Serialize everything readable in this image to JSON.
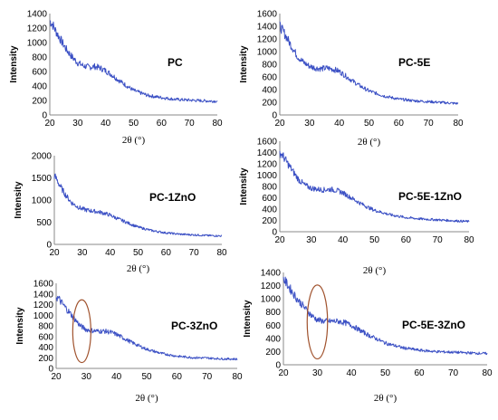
{
  "chart_data": [
    {
      "type": "line",
      "title": "PC",
      "xlabel": "2θ (°)",
      "ylabel": "Intensity",
      "xlim": [
        20,
        80
      ],
      "ylim": [
        0,
        1400
      ],
      "x_ticks": [
        20,
        30,
        40,
        50,
        60,
        70,
        80
      ],
      "y_ticks": [
        0,
        200,
        400,
        600,
        800,
        1000,
        1200,
        1400
      ],
      "series": [
        {
          "x": [
            20,
            21,
            22,
            24,
            26,
            28,
            30,
            32,
            34,
            36,
            38,
            40,
            42,
            45,
            48,
            50,
            55,
            60,
            65,
            70,
            75,
            80
          ],
          "values": [
            1300,
            1250,
            1170,
            1030,
            900,
            800,
            720,
            680,
            660,
            670,
            650,
            610,
            560,
            470,
            390,
            340,
            270,
            240,
            215,
            205,
            195,
            190
          ]
        }
      ],
      "highlight_ellipse": false
    },
    {
      "type": "line",
      "title": "PC-5E",
      "xlabel": "2θ (°)",
      "ylabel": "Intensity",
      "xlim": [
        20,
        80
      ],
      "ylim": [
        0,
        1600
      ],
      "x_ticks": [
        20,
        30,
        40,
        50,
        60,
        70,
        80
      ],
      "y_ticks": [
        0,
        200,
        400,
        600,
        800,
        1000,
        1200,
        1400,
        1600
      ],
      "series": [
        {
          "x": [
            20,
            21,
            22,
            24,
            26,
            28,
            30,
            32,
            34,
            36,
            38,
            40,
            42,
            45,
            48,
            50,
            55,
            60,
            65,
            70,
            75,
            80
          ],
          "values": [
            1400,
            1330,
            1250,
            1080,
            920,
            830,
            770,
            740,
            730,
            740,
            720,
            690,
            620,
            520,
            430,
            380,
            300,
            250,
            225,
            210,
            195,
            180
          ]
        }
      ],
      "highlight_ellipse": false
    },
    {
      "type": "line",
      "title": "PC-1ZnO",
      "xlabel": "2θ (°)",
      "ylabel": "Intensity",
      "xlim": [
        20,
        80
      ],
      "ylim": [
        0,
        2000
      ],
      "x_ticks": [
        20,
        30,
        40,
        50,
        60,
        70,
        80
      ],
      "y_ticks": [
        0,
        500,
        1000,
        1500,
        2000
      ],
      "series": [
        {
          "x": [
            20,
            21,
            22,
            24,
            26,
            28,
            30,
            32,
            34,
            36,
            38,
            40,
            42,
            45,
            48,
            50,
            55,
            60,
            65,
            70,
            75,
            80
          ],
          "values": [
            1550,
            1450,
            1320,
            1120,
            950,
            860,
            800,
            770,
            750,
            730,
            700,
            660,
            600,
            520,
            440,
            390,
            310,
            260,
            230,
            215,
            200,
            190
          ]
        }
      ],
      "highlight_ellipse": false
    },
    {
      "type": "line",
      "title": "PC-5E-1ZnO",
      "xlabel": "2θ (°)",
      "ylabel": "Intensity",
      "xlim": [
        20,
        80
      ],
      "ylim": [
        0,
        1600
      ],
      "x_ticks": [
        20,
        30,
        40,
        50,
        60,
        70,
        80
      ],
      "y_ticks": [
        0,
        200,
        400,
        600,
        800,
        1000,
        1200,
        1400,
        1600
      ],
      "series": [
        {
          "x": [
            20,
            21,
            22,
            24,
            26,
            28,
            30,
            32,
            34,
            36,
            38,
            40,
            42,
            45,
            48,
            50,
            55,
            60,
            65,
            70,
            75,
            80
          ],
          "values": [
            1400,
            1340,
            1250,
            1080,
            920,
            820,
            770,
            750,
            740,
            750,
            730,
            690,
            620,
            520,
            430,
            380,
            300,
            250,
            225,
            210,
            195,
            180
          ]
        }
      ],
      "highlight_ellipse": false
    },
    {
      "type": "line",
      "title": "PC-3ZnO",
      "xlabel": "2θ (°)",
      "ylabel": "Intensity",
      "xlim": [
        20,
        80
      ],
      "ylim": [
        0,
        1600
      ],
      "x_ticks": [
        20,
        30,
        40,
        50,
        60,
        70,
        80
      ],
      "y_ticks": [
        0,
        200,
        400,
        600,
        800,
        1000,
        1200,
        1400,
        1600
      ],
      "series": [
        {
          "x": [
            20,
            21,
            22,
            24,
            26,
            28,
            30,
            32,
            34,
            36,
            38,
            40,
            42,
            45,
            48,
            50,
            55,
            60,
            65,
            70,
            75,
            80
          ],
          "values": [
            1350,
            1300,
            1220,
            1080,
            940,
            800,
            730,
            710,
            700,
            700,
            680,
            640,
            580,
            490,
            410,
            360,
            280,
            230,
            205,
            195,
            180,
            175
          ]
        }
      ],
      "highlight_ellipse": true,
      "ellipse_center": [
        28.5,
        700
      ],
      "ellipse_radius": [
        3,
        590
      ]
    },
    {
      "type": "line",
      "title": "PC-5E-3ZnO",
      "xlabel": "2θ (°)",
      "ylabel": "Intensity",
      "xlim": [
        20,
        80
      ],
      "ylim": [
        0,
        1400
      ],
      "x_ticks": [
        20,
        30,
        40,
        50,
        60,
        70,
        80
      ],
      "y_ticks": [
        0,
        200,
        400,
        600,
        800,
        1000,
        1200,
        1400
      ],
      "series": [
        {
          "x": [
            20,
            21,
            22,
            24,
            26,
            28,
            30,
            32,
            34,
            36,
            38,
            40,
            42,
            45,
            48,
            50,
            55,
            60,
            65,
            70,
            75,
            80
          ],
          "values": [
            1300,
            1230,
            1150,
            1000,
            880,
            760,
            680,
            660,
            660,
            660,
            640,
            600,
            540,
            450,
            380,
            330,
            260,
            220,
            200,
            190,
            180,
            170
          ]
        }
      ],
      "highlight_ellipse": true,
      "ellipse_center": [
        30,
        650
      ],
      "ellipse_radius": [
        3,
        560
      ]
    }
  ]
}
